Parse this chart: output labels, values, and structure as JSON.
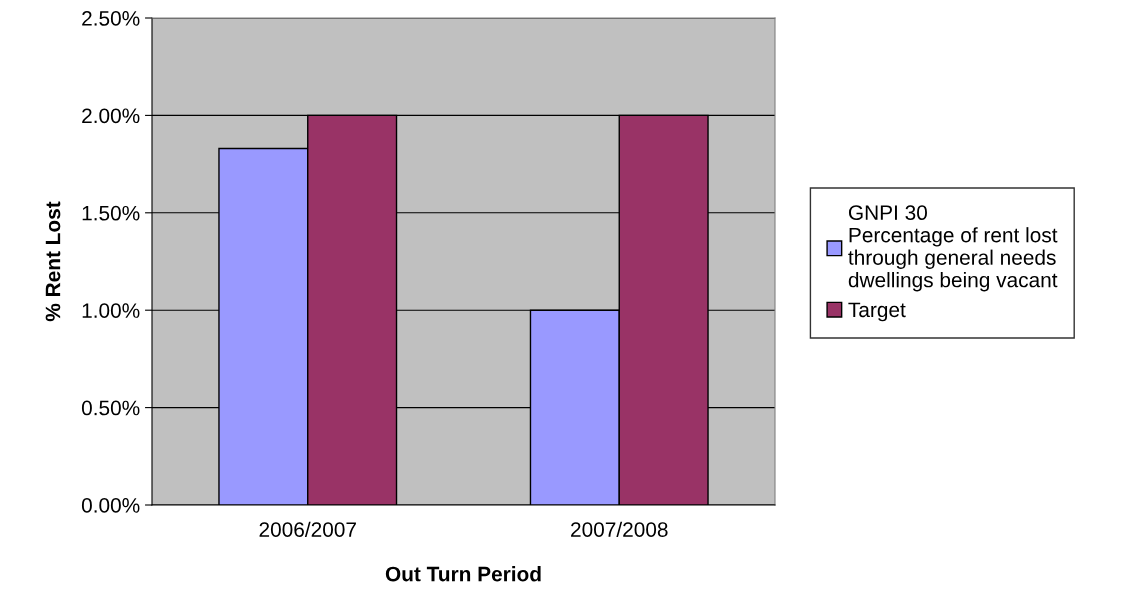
{
  "chart_data": {
    "type": "bar",
    "xlabel": "Out Turn Period",
    "ylabel": "% Rent Lost",
    "categories": [
      "2006/2007",
      "2007/2008"
    ],
    "series": [
      {
        "name": "GNPI 30\nPercentage of rent lost\nthrough general needs\ndwellings being vacant",
        "color": "#9999ff",
        "values": [
          1.83,
          1.0
        ]
      },
      {
        "name": "Target",
        "color": "#993366",
        "values": [
          2.0,
          2.0
        ]
      }
    ],
    "ylim": [
      0,
      2.5
    ],
    "yticks": [
      {
        "value": 0,
        "label": "0.00%"
      },
      {
        "value": 0.5,
        "label": "0.50%"
      },
      {
        "value": 1.0,
        "label": "1.00%"
      },
      {
        "value": 1.5,
        "label": "1.50%"
      },
      {
        "value": 2.0,
        "label": "2.00%"
      },
      {
        "value": 2.5,
        "label": "2.50%"
      }
    ],
    "grid": "y",
    "legend": "right"
  }
}
